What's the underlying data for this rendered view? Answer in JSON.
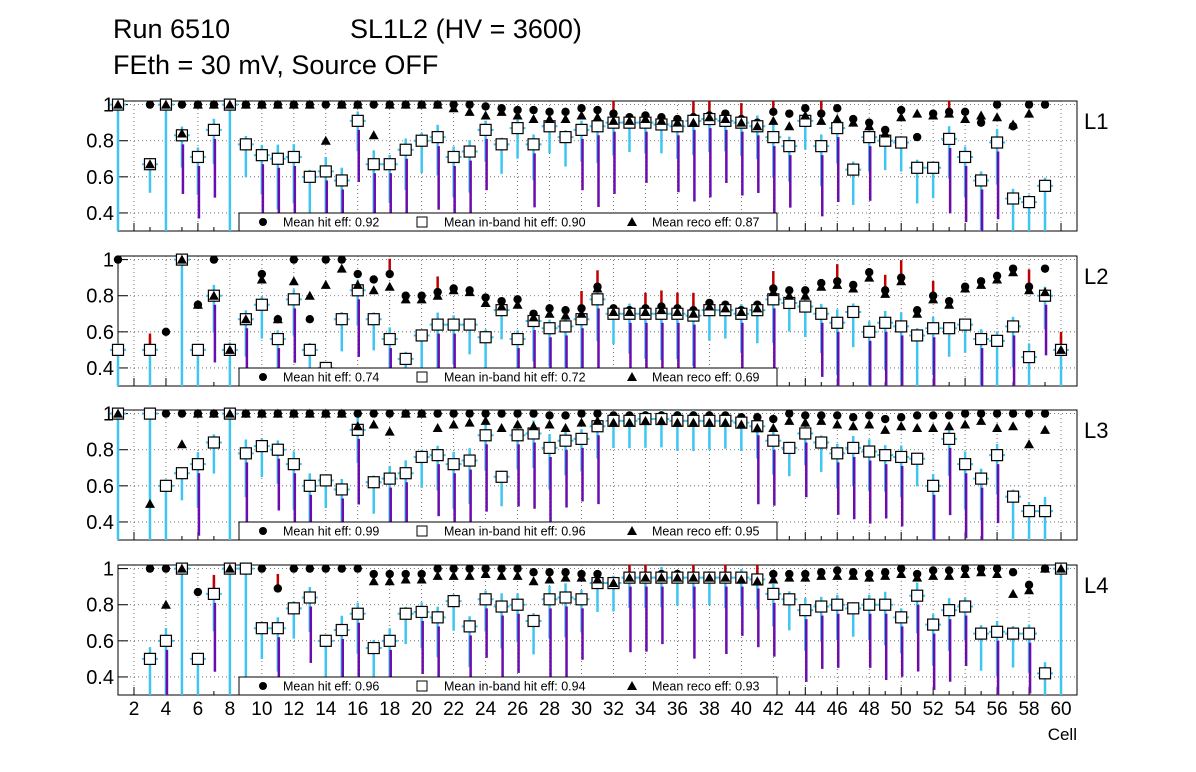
{
  "header": {
    "run": "Run 6510",
    "sl": "SL1L2 (HV = 3600)",
    "subtitle": "FEth = 30 mV, Source OFF"
  },
  "colors": {
    "errbar": "#3ec6f0",
    "lowerr": "#6a0dad",
    "uperr": "#c00000",
    "grid": "#555555"
  },
  "chart_data": {
    "type": "scatter",
    "xlabel": "Cell",
    "xlim": [
      1,
      61
    ],
    "ylim": [
      0.3,
      1.02
    ],
    "yticks": [
      0.4,
      0.6,
      0.8,
      1
    ],
    "ytick_labels": [
      "0.4",
      "0.6",
      "0.8",
      "1"
    ],
    "xticks": [
      2,
      4,
      6,
      8,
      10,
      12,
      14,
      16,
      18,
      20,
      22,
      24,
      26,
      28,
      30,
      32,
      34,
      36,
      38,
      40,
      42,
      44,
      46,
      48,
      50,
      52,
      54,
      56,
      58,
      60
    ],
    "legend_labels": [
      "Mean hit  eff:",
      "Mean in-band hit eff:",
      "Mean reco eff:"
    ],
    "grid": true,
    "panels": [
      {
        "name": "L1",
        "mean_hit": "0.92",
        "mean_inband": "0.90",
        "mean_reco": "0.87",
        "hit": [
          1,
          0,
          1,
          1,
          1,
          1,
          1,
          1,
          1,
          1,
          1,
          1,
          1,
          1,
          1,
          1,
          1,
          1,
          1,
          1,
          1,
          1,
          1,
          0.99,
          0.98,
          0.97,
          0.97,
          0.96,
          0.96,
          0.98,
          0.97,
          0.95,
          0.93,
          0.94,
          0.93,
          0.92,
          0.93,
          0.94,
          0.95,
          0.92,
          0.9,
          0.96,
          0.95,
          0.98,
          0.95,
          0.98,
          0.92,
          0.9,
          0.86,
          0.97,
          0.82,
          0.95,
          0.96,
          0.96,
          0.9,
          1,
          0.88,
          1,
          1,
          0
        ],
        "inband": [
          1,
          0,
          0.67,
          1,
          0.83,
          0.71,
          0.86,
          1,
          0.78,
          0.72,
          0.7,
          0.71,
          0.6,
          0.63,
          0.58,
          0.91,
          0.67,
          0.67,
          0.75,
          0.8,
          0.82,
          0.71,
          0.74,
          0.86,
          0.78,
          0.87,
          0.78,
          0.88,
          0.82,
          0.86,
          0.88,
          0.9,
          0.9,
          0.9,
          0.89,
          0.88,
          0.91,
          0.92,
          0.91,
          0.9,
          0.88,
          0.82,
          0.77,
          0.91,
          0.77,
          0.87,
          0.64,
          0.82,
          0.8,
          0.79,
          0.65,
          0.65,
          0.81,
          0.71,
          0.58,
          0.79,
          0.48,
          0.46,
          0.55,
          0
        ],
        "reco": [
          1,
          0,
          0.67,
          1,
          0.84,
          1,
          1,
          1,
          1,
          1,
          1,
          1,
          1,
          0.8,
          1,
          1,
          0.83,
          1,
          1,
          1,
          1,
          0.98,
          0.96,
          0.94,
          0.96,
          0.94,
          0.92,
          0.92,
          0.92,
          0.94,
          0.93,
          0.91,
          0.91,
          0.92,
          0.91,
          0.9,
          0.9,
          0.93,
          0.92,
          0.9,
          0.88,
          0.91,
          0.88,
          0.94,
          0.91,
          0.92,
          0.9,
          0.88,
          0.84,
          0.93,
          0.95,
          0.94,
          0.95,
          0.92,
          0.94,
          0.93,
          0.89,
          0.95,
          0,
          0
        ]
      },
      {
        "name": "L2",
        "mean_hit": "0.74",
        "mean_inband": "0.72",
        "mean_reco": "0.69",
        "hit": [
          1,
          0,
          0.5,
          0.6,
          1,
          0.75,
          1,
          0.5,
          0.67,
          0.92,
          0.67,
          1,
          0.67,
          1,
          1,
          0.92,
          0.89,
          0.92,
          0.8,
          0.8,
          0.82,
          0.84,
          0.83,
          0.79,
          0.77,
          0.78,
          0.7,
          0.73,
          0.72,
          0.73,
          0.85,
          0.73,
          0.72,
          0.73,
          0.74,
          0.73,
          0.72,
          0.76,
          0.75,
          0.72,
          0.75,
          0.84,
          0.83,
          0.83,
          0.87,
          0.88,
          0.86,
          0.93,
          0.83,
          0.9,
          0.72,
          0.8,
          0.77,
          0.85,
          0.88,
          0.91,
          0.95,
          0.85,
          0.95,
          0.5
        ],
        "inband": [
          0.5,
          0,
          0.5,
          0,
          1,
          0.5,
          0.8,
          0.5,
          0.67,
          0.75,
          0.56,
          0.78,
          0.5,
          0.4,
          0.67,
          0.83,
          0.67,
          0.56,
          0.45,
          0.58,
          0.64,
          0.64,
          0.64,
          0.57,
          0.72,
          0.56,
          0.66,
          0.62,
          0.63,
          0.67,
          0.78,
          0.7,
          0.7,
          0.7,
          0.7,
          0.7,
          0.69,
          0.72,
          0.72,
          0.7,
          0.72,
          0.78,
          0.76,
          0.74,
          0.7,
          0.65,
          0.71,
          0.6,
          0.65,
          0.63,
          0.58,
          0.62,
          0.62,
          0.64,
          0.56,
          0.55,
          0.63,
          0.46,
          0.8,
          0.5
        ],
        "reco": [
          0,
          0,
          0,
          0,
          1,
          0.75,
          0.8,
          0.5,
          0.67,
          0.89,
          0.67,
          0.88,
          0.8,
          0.86,
          0.95,
          0.86,
          0.83,
          0.85,
          0.78,
          0.78,
          0.8,
          0.83,
          0.82,
          0.76,
          0.74,
          0.75,
          0.68,
          0.7,
          0.69,
          0.7,
          0.84,
          0.71,
          0.71,
          0.71,
          0.72,
          0.71,
          0.7,
          0.74,
          0.73,
          0.71,
          0.73,
          0.82,
          0.8,
          0.8,
          0.85,
          0.86,
          0.84,
          0.9,
          0.81,
          0.88,
          0.7,
          0.78,
          0.75,
          0.84,
          0.86,
          0.89,
          0.93,
          0.83,
          0.82,
          0.5
        ]
      },
      {
        "name": "L3",
        "mean_hit": "0.99",
        "mean_inband": "0.96",
        "mean_reco": "0.95",
        "hit": [
          1,
          0,
          1,
          1,
          1,
          1,
          1,
          1,
          1,
          1,
          1,
          1,
          1,
          1,
          1,
          1,
          1,
          1,
          1,
          1,
          1,
          1,
          1,
          1,
          1,
          1,
          1,
          0.99,
          0.99,
          1,
          1,
          0.99,
          0.99,
          0.99,
          0.99,
          0.99,
          0.99,
          0.99,
          0.99,
          0.98,
          0.98,
          0.97,
          1,
          0.99,
          0.99,
          0.99,
          0.98,
          0.99,
          0.97,
          0.98,
          0.99,
          0.99,
          0.99,
          1,
          1,
          1,
          1,
          1,
          1,
          0
        ],
        "inband": [
          1,
          0,
          1,
          0.6,
          0.67,
          0.72,
          0.84,
          1,
          0.78,
          0.82,
          0.8,
          0.72,
          0.6,
          0.63,
          0.58,
          0.91,
          0.62,
          0.64,
          0.67,
          0.76,
          0.77,
          0.72,
          0.74,
          0.88,
          0.65,
          0.88,
          0.89,
          0.81,
          0.85,
          0.86,
          0.93,
          0.96,
          0.96,
          0.97,
          0.97,
          0.96,
          0.96,
          0.96,
          0.96,
          0.95,
          0.93,
          0.85,
          0.81,
          0.89,
          0.84,
          0.78,
          0.81,
          0.79,
          0.77,
          0.76,
          0.75,
          0.6,
          0.86,
          0.72,
          0.64,
          0.77,
          0.54,
          0.46,
          0.46,
          0
        ],
        "reco": [
          1,
          0,
          0.5,
          0,
          0.83,
          1,
          1,
          1,
          1,
          1,
          1,
          1,
          1,
          1,
          1,
          0.93,
          0.94,
          0.9,
          1,
          1,
          0.92,
          0.94,
          0.95,
          0.96,
          0.92,
          0.94,
          0.93,
          0.94,
          0.92,
          0.95,
          0.96,
          0.95,
          0.95,
          0.96,
          0.96,
          0.95,
          0.95,
          0.95,
          0.95,
          0.94,
          0.92,
          0.92,
          0.96,
          0.95,
          0.96,
          0.94,
          0.93,
          0.94,
          0.91,
          0.93,
          0.92,
          0.92,
          0.93,
          0.94,
          0.96,
          0.92,
          0.93,
          0.83,
          0.91,
          0
        ]
      },
      {
        "name": "L4",
        "mean_hit": "0.96",
        "mean_inband": "0.94",
        "mean_reco": "0.93",
        "hit": [
          0,
          0,
          1,
          1,
          1,
          0.87,
          0.87,
          1,
          1,
          1,
          0.89,
          1,
          1,
          1,
          1,
          1,
          0.97,
          0.97,
          0.97,
          0.97,
          1,
          1,
          1,
          1,
          1,
          1,
          0.98,
          0.98,
          0.98,
          0.97,
          0.97,
          0.93,
          0.96,
          0.96,
          0.97,
          0.97,
          0.96,
          0.96,
          0.96,
          0.96,
          0.95,
          0.97,
          0.97,
          0.97,
          0.98,
          0.99,
          0.98,
          0.97,
          0.98,
          1,
          0.97,
          0.99,
          0.99,
          1,
          1,
          1,
          0.98,
          0.91,
          1,
          0
        ],
        "inband": [
          0,
          0,
          0.5,
          0.6,
          1,
          0.5,
          0.86,
          1,
          1,
          0.67,
          0.67,
          0.78,
          0.84,
          0.6,
          0.66,
          0.75,
          0.56,
          0.6,
          0.75,
          0.76,
          0.73,
          0.82,
          0.68,
          0.83,
          0.79,
          0.8,
          0.71,
          0.83,
          0.84,
          0.83,
          0.92,
          0.92,
          0.95,
          0.95,
          0.95,
          0.95,
          0.95,
          0.95,
          0.95,
          0.95,
          0.94,
          0.86,
          0.83,
          0.77,
          0.79,
          0.8,
          0.78,
          0.8,
          0.8,
          0.73,
          0.85,
          0.69,
          0.77,
          0.79,
          0.64,
          0.65,
          0.64,
          0.64,
          0.42,
          1
        ],
        "reco": [
          0,
          0,
          0,
          0.8,
          1,
          0,
          0,
          1,
          0,
          0,
          0,
          0,
          0,
          0,
          0,
          0,
          0.93,
          0.93,
          0.94,
          0.94,
          0.96,
          0.96,
          0.96,
          0.97,
          0.96,
          0.96,
          0.93,
          0.94,
          0.95,
          0.95,
          0.94,
          0.92,
          0.95,
          0.95,
          0.95,
          0.95,
          0.95,
          0.95,
          0.95,
          0.94,
          0.93,
          0.94,
          0.95,
          0.95,
          0.96,
          0.96,
          0.96,
          0.95,
          0.96,
          0.97,
          0.95,
          0.96,
          0.96,
          0.97,
          0.98,
          0.97,
          0.86,
          0.88,
          1,
          1
        ]
      }
    ]
  }
}
